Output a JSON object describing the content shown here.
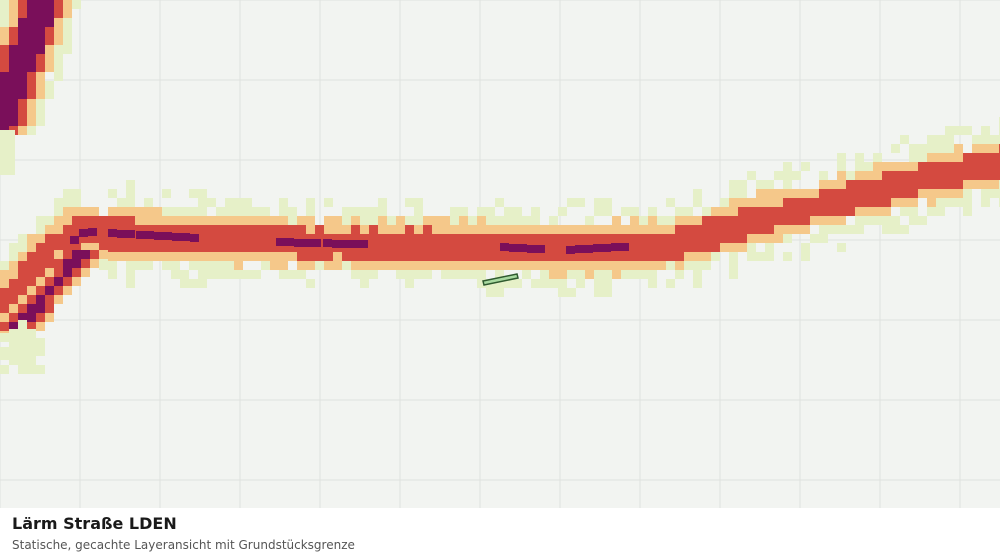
{
  "caption": {
    "title": "Lärm Straße LDEN",
    "subtitle": "Statische, gecachte Layeransicht mit Grundstücksgrenze"
  },
  "map": {
    "background": "#f2f4f1",
    "grid_color": "#dfe2de",
    "noise_colors": {
      "lowest": "#e6f0c8",
      "low": "#f5c88a",
      "high": "#d44a40",
      "highest": "#7a0f5a"
    },
    "parcel_fill": "#a8d9a0",
    "parcel_stroke": "#2f5a2f"
  }
}
